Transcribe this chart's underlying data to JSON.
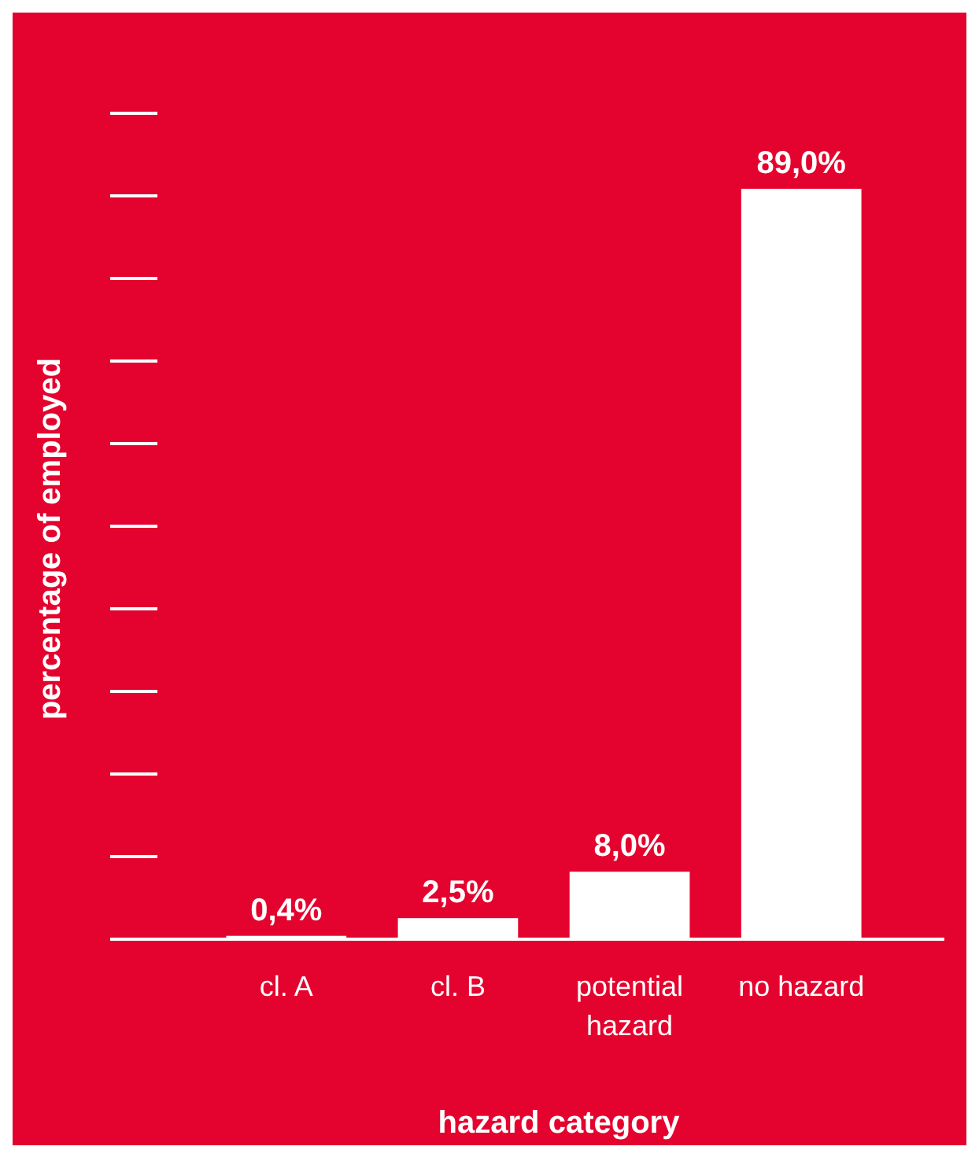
{
  "chart_data": {
    "type": "bar",
    "xlabel": "hazard category",
    "ylabel": "percentage of employed",
    "categories": [
      "cl. A",
      "cl. B",
      "potential hazard",
      "no hazard"
    ],
    "values": [
      0.4,
      2.5,
      8.0,
      89.0
    ],
    "value_labels": [
      "0,4%",
      "2,5%",
      "8,0%",
      "89,0%"
    ],
    "color": "#ffffff",
    "tick_labels": "x"
  }
}
